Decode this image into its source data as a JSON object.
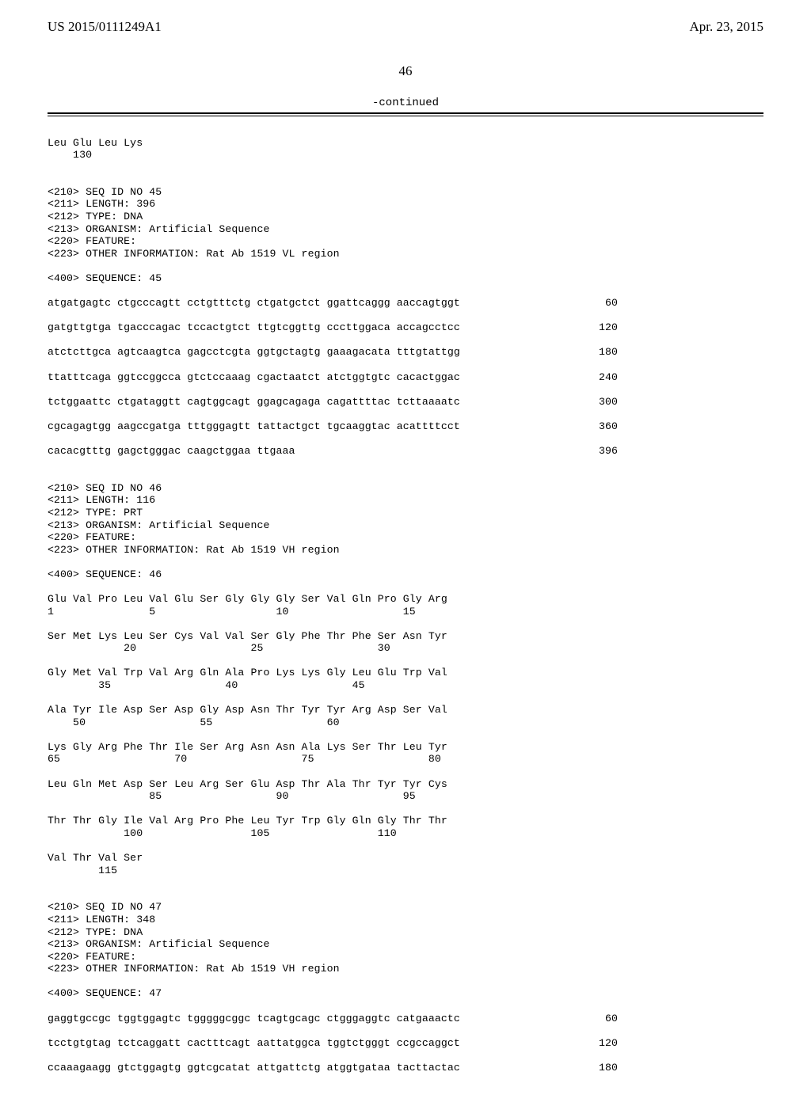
{
  "header": {
    "pub_number": "US 2015/0111249A1",
    "pub_date": "Apr. 23, 2015"
  },
  "page_number": "46",
  "continued_label": "-continued",
  "blocks": {
    "tail_131": [
      "Leu Glu Leu Lys",
      "    130"
    ],
    "meta_45": [
      "<210> SEQ ID NO 45",
      "<211> LENGTH: 396",
      "<212> TYPE: DNA",
      "<213> ORGANISM: Artificial Sequence",
      "<220> FEATURE:",
      "<223> OTHER INFORMATION: Rat Ab 1519 VL region"
    ],
    "seq45_label": "<400> SEQUENCE: 45",
    "seq45_rows": [
      {
        "l": "atgatgagtc ctgcccagtt cctgtttctg ctgatgctct ggattcaggg aaccagtggt",
        "r": "60"
      },
      {
        "l": "gatgttgtga tgacccagac tccactgtct ttgtcggttg cccttggaca accagcctcc",
        "r": "120"
      },
      {
        "l": "atctcttgca agtcaagtca gagcctcgta ggtgctagtg gaaagacata tttgtattgg",
        "r": "180"
      },
      {
        "l": "ttatttcaga ggtccggcca gtctccaaag cgactaatct atctggtgtc cacactggac",
        "r": "240"
      },
      {
        "l": "tctggaattc ctgataggtt cagtggcagt ggagcagaga cagattttac tcttaaaatc",
        "r": "300"
      },
      {
        "l": "cgcagagtgg aagccgatga tttgggagtt tattactgct tgcaaggtac acattttcct",
        "r": "360"
      }
    ],
    "seq45_last": {
      "l": "cacacgtttg gagctgggac caagctggaa ttgaaa",
      "r": "396"
    },
    "meta_46": [
      "<210> SEQ ID NO 46",
      "<211> LENGTH: 116",
      "<212> TYPE: PRT",
      "<213> ORGANISM: Artificial Sequence",
      "<220> FEATURE:",
      "<223> OTHER INFORMATION: Rat Ab 1519 VH region"
    ],
    "seq46_label": "<400> SEQUENCE: 46",
    "seq46_lines": [
      "Glu Val Pro Leu Val Glu Ser Gly Gly Gly Ser Val Gln Pro Gly Arg",
      "1               5                   10                  15",
      "",
      "Ser Met Lys Leu Ser Cys Val Val Ser Gly Phe Thr Phe Ser Asn Tyr",
      "            20                  25                  30",
      "",
      "Gly Met Val Trp Val Arg Gln Ala Pro Lys Lys Gly Leu Glu Trp Val",
      "        35                  40                  45",
      "",
      "Ala Tyr Ile Asp Ser Asp Gly Asp Asn Thr Tyr Tyr Arg Asp Ser Val",
      "    50                  55                  60",
      "",
      "Lys Gly Arg Phe Thr Ile Ser Arg Asn Asn Ala Lys Ser Thr Leu Tyr",
      "65                  70                  75                  80",
      "",
      "Leu Gln Met Asp Ser Leu Arg Ser Glu Asp Thr Ala Thr Tyr Tyr Cys",
      "                85                  90                  95",
      "",
      "Thr Thr Gly Ile Val Arg Pro Phe Leu Tyr Trp Gly Gln Gly Thr Thr",
      "            100                 105                 110",
      "",
      "Val Thr Val Ser",
      "        115"
    ],
    "meta_47": [
      "<210> SEQ ID NO 47",
      "<211> LENGTH: 348",
      "<212> TYPE: DNA",
      "<213> ORGANISM: Artificial Sequence",
      "<220> FEATURE:",
      "<223> OTHER INFORMATION: Rat Ab 1519 VH region"
    ],
    "seq47_label": "<400> SEQUENCE: 47",
    "seq47_rows": [
      {
        "l": "gaggtgccgc tggtggagtc tgggggcggc tcagtgcagc ctgggaggtc catgaaactc",
        "r": "60"
      },
      {
        "l": "tcctgtgtag tctcaggatt cactttcagt aattatggca tggtctgggt ccgccaggct",
        "r": "120"
      },
      {
        "l": "ccaaagaagg gtctggagtg ggtcgcatat attgattctg atggtgataa tacttactac",
        "r": "180"
      }
    ]
  }
}
